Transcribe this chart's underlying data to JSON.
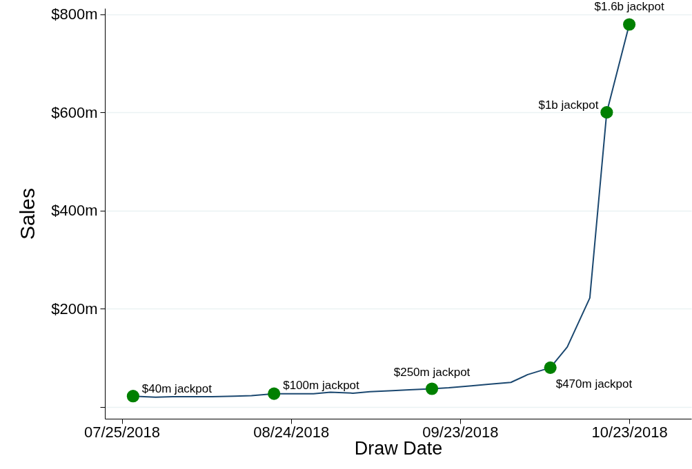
{
  "chart_data": {
    "type": "line",
    "xlabel": "Draw Date",
    "ylabel": "Sales",
    "xlim": [
      "2018-07-22",
      "2018-11-03"
    ],
    "ylim": [
      -24,
      812
    ],
    "xticks": [
      {
        "value": "2018-07-25",
        "label": "07/25/2018"
      },
      {
        "value": "2018-08-24",
        "label": "08/24/2018"
      },
      {
        "value": "2018-09-23",
        "label": "09/23/2018"
      },
      {
        "value": "2018-10-23",
        "label": "10/23/2018"
      }
    ],
    "yticks": [
      {
        "value": 0,
        "label": null
      },
      {
        "value": 200,
        "label": "$200m"
      },
      {
        "value": 400,
        "label": "$400m"
      },
      {
        "value": 600,
        "label": "$600m"
      },
      {
        "value": 800,
        "label": "$800m"
      }
    ],
    "grid": "y",
    "series": [
      {
        "type": "line",
        "color": "#1a476f",
        "x": [
          "2018-07-27",
          "2018-07-31",
          "2018-08-03",
          "2018-08-07",
          "2018-08-10",
          "2018-08-14",
          "2018-08-17",
          "2018-08-21",
          "2018-08-24",
          "2018-08-28",
          "2018-08-31",
          "2018-09-04",
          "2018-09-07",
          "2018-09-11",
          "2018-09-14",
          "2018-09-18",
          "2018-09-21",
          "2018-09-25",
          "2018-09-28",
          "2018-10-02",
          "2018-10-05",
          "2018-10-09",
          "2018-10-12",
          "2018-10-16",
          "2018-10-19",
          "2018-10-23"
        ],
        "values": [
          22,
          20,
          21,
          21,
          21,
          22,
          23,
          27,
          27,
          27,
          30,
          28,
          31,
          33,
          35,
          37,
          39,
          43,
          46,
          50,
          66,
          80,
          122,
          222,
          600,
          779
        ]
      },
      {
        "type": "scatter",
        "color": "#008000",
        "x": [
          "2018-07-27",
          "2018-08-21",
          "2018-09-18",
          "2018-10-09",
          "2018-10-19",
          "2018-10-23"
        ],
        "values": [
          22,
          27,
          37,
          80,
          600,
          779
        ]
      }
    ],
    "annotations": [
      {
        "text": "$40m jackpot",
        "x": "2018-07-27",
        "y": 22
      },
      {
        "text": "$100m jackpot",
        "x": "2018-08-21",
        "y": 27
      },
      {
        "text": "$250m jackpot",
        "x": "2018-09-18",
        "y": 37
      },
      {
        "text": "$470m jackpot",
        "x": "2018-10-09",
        "y": 80
      },
      {
        "text": "$1b jackpot",
        "x": "2018-10-19",
        "y": 600
      },
      {
        "text": "$1.6b jackpot",
        "x": "2018-10-23",
        "y": 779
      }
    ]
  }
}
